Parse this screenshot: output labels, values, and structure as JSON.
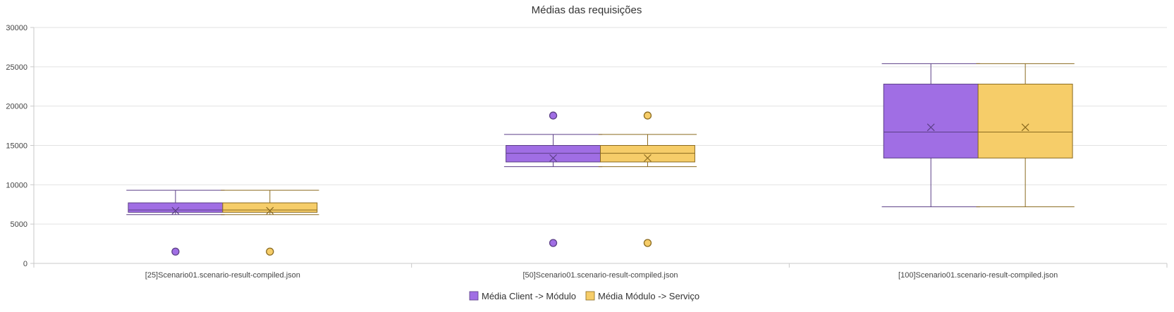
{
  "chart_data": {
    "type": "boxplot",
    "title": "Médias das requisições",
    "ylim": [
      0,
      30000
    ],
    "yticks": [
      "0",
      "5000",
      "10000",
      "15000",
      "20000",
      "25000",
      "30000"
    ],
    "categories": [
      "[25]Scenario01.scenario-result-compiled.json",
      "[50]Scenario01.scenario-result-compiled.json",
      "[100]Scenario01.scenario-result-compiled.json"
    ],
    "grid": true,
    "legend": "bottom-center",
    "series": [
      {
        "name": "Média Client -> Módulo",
        "color": "#a06ee4",
        "boxes": [
          {
            "min": 6200,
            "q1": 6500,
            "median": 6800,
            "q3": 7700,
            "max": 9300,
            "mean": 6700,
            "outliers": [
              1500
            ]
          },
          {
            "min": 12300,
            "q1": 12900,
            "median": 14000,
            "q3": 15000,
            "max": 16400,
            "mean": 13400,
            "outliers": [
              18800,
              2600
            ]
          },
          {
            "min": 7200,
            "q1": 13400,
            "median": 16700,
            "q3": 22800,
            "max": 25400,
            "mean": 17300,
            "outliers": []
          }
        ]
      },
      {
        "name": "Média Módulo -> Serviço",
        "color": "#f6cd69",
        "boxes": [
          {
            "min": 6200,
            "q1": 6500,
            "median": 6800,
            "q3": 7700,
            "max": 9300,
            "mean": 6700,
            "outliers": [
              1500
            ]
          },
          {
            "min": 12300,
            "q1": 12900,
            "median": 14000,
            "q3": 15000,
            "max": 16400,
            "mean": 13400,
            "outliers": [
              18800,
              2600
            ]
          },
          {
            "min": 7200,
            "q1": 13400,
            "median": 16700,
            "q3": 22800,
            "max": 25400,
            "mean": 17300,
            "outliers": []
          }
        ]
      }
    ]
  }
}
